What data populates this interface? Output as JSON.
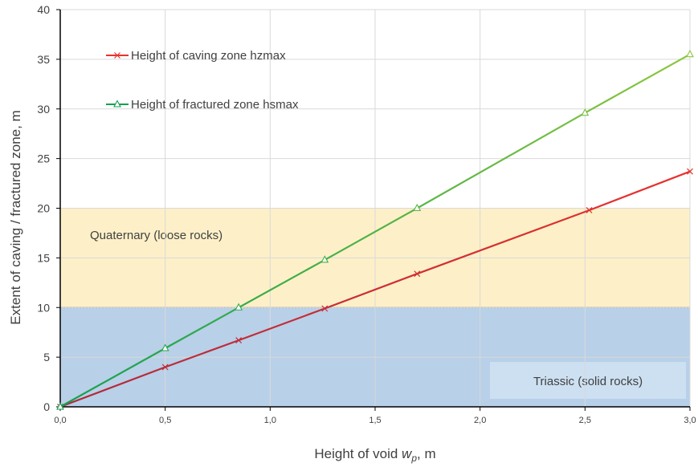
{
  "chart_data": {
    "type": "line",
    "xlabel_prefix": "Height of void ",
    "xlabel_var": "w",
    "xlabel_sub": "p",
    "xlabel_suffix": ", m",
    "ylabel": "Extent of caving / fractured zone, m",
    "xlim": [
      0,
      3
    ],
    "ylim": [
      0,
      40
    ],
    "x_ticks": [
      0,
      0.5,
      1,
      1.5,
      2,
      2.5,
      3
    ],
    "x_tick_labels": [
      "0,0",
      "0,5",
      "1,0",
      "1,5",
      "2,0",
      "2,5",
      "3,0"
    ],
    "y_ticks": [
      0,
      5,
      10,
      15,
      20,
      25,
      30,
      35,
      40
    ],
    "y_tick_labels": [
      "0",
      "5",
      "10",
      "15",
      "20",
      "25",
      "30",
      "35",
      "40"
    ],
    "grid": true,
    "legend_position": "top-left",
    "zones": [
      {
        "label": "Quaternary (loose rocks)",
        "y0": 10,
        "y1": 20,
        "color": "#fdf0c8"
      },
      {
        "label": "Triassic (solid rocks)",
        "y0": 0,
        "y1": 10,
        "color": "#b8d0e8"
      }
    ],
    "series": [
      {
        "name": "Height of caving zone hzmax",
        "marker": "x",
        "color_start": "#b02a3a",
        "color_end": "#e8322e",
        "x": [
          0,
          0.5,
          0.85,
          1.26,
          1.7,
          2.52,
          3.0
        ],
        "y": [
          0,
          4.0,
          6.7,
          9.9,
          13.4,
          19.8,
          23.7
        ]
      },
      {
        "name": "Height of fractured zone hsmax",
        "marker": "triangle",
        "color_start": "#14a050",
        "color_end": "#8cc63e",
        "x": [
          0,
          0.5,
          0.85,
          1.26,
          1.7,
          2.5,
          3.0
        ],
        "y": [
          0,
          5.9,
          10.0,
          14.8,
          20.0,
          29.6,
          35.5
        ]
      }
    ]
  }
}
